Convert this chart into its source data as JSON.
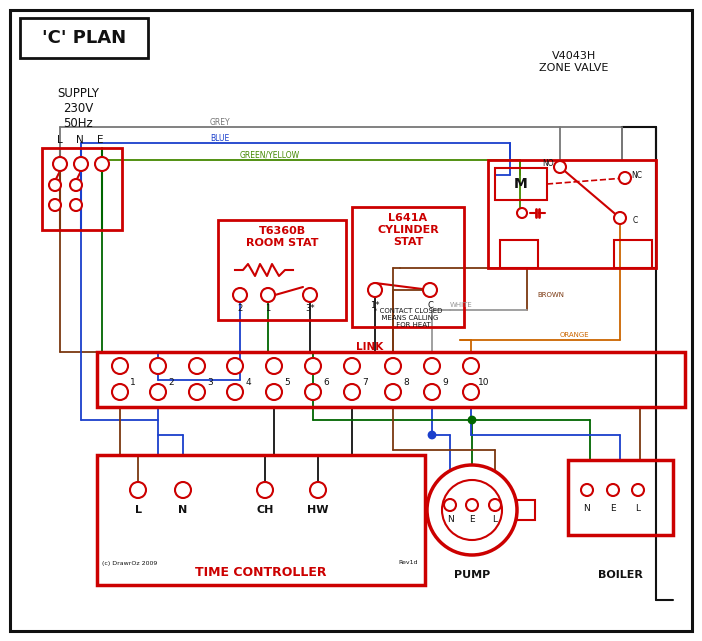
{
  "bg": "#ffffff",
  "RED": "#cc0000",
  "BLUE": "#1a3fcc",
  "GREEN": "#006600",
  "BROWN": "#7B3810",
  "GREY": "#777777",
  "ORANGE": "#cc6600",
  "BLACK": "#111111",
  "WHITE_W": "#999999",
  "GY": "#448800",
  "title": "'C' PLAN",
  "supply_lbl": "SUPPLY\n230V\n50Hz",
  "zone_valve_lbl": "V4043H\nZONE VALVE",
  "room_stat_lbl": "T6360B\nROOM STAT",
  "cyl_stat_lbl": "L641A\nCYLINDER\nSTAT",
  "time_ctrl_lbl": "TIME CONTROLLER",
  "pump_lbl": "PUMP",
  "boiler_lbl": "BOILER",
  "link_lbl": "LINK",
  "no_lbl": "NO",
  "nc_lbl": "NC",
  "c_lbl": "C",
  "m_lbl": "M",
  "grey_lbl": "GREY",
  "blue_lbl": "BLUE",
  "gy_lbl": "GREEN/YELLOW",
  "brown_lbl": "BROWN",
  "white_lbl": "WHITE",
  "orange_lbl": "ORANGE",
  "contact_note": "* CONTACT CLOSED\n  MEANS CALLING\n     FOR HEAT",
  "copyright": "(c) DrawrOz 2009",
  "rev": "Rev1d"
}
